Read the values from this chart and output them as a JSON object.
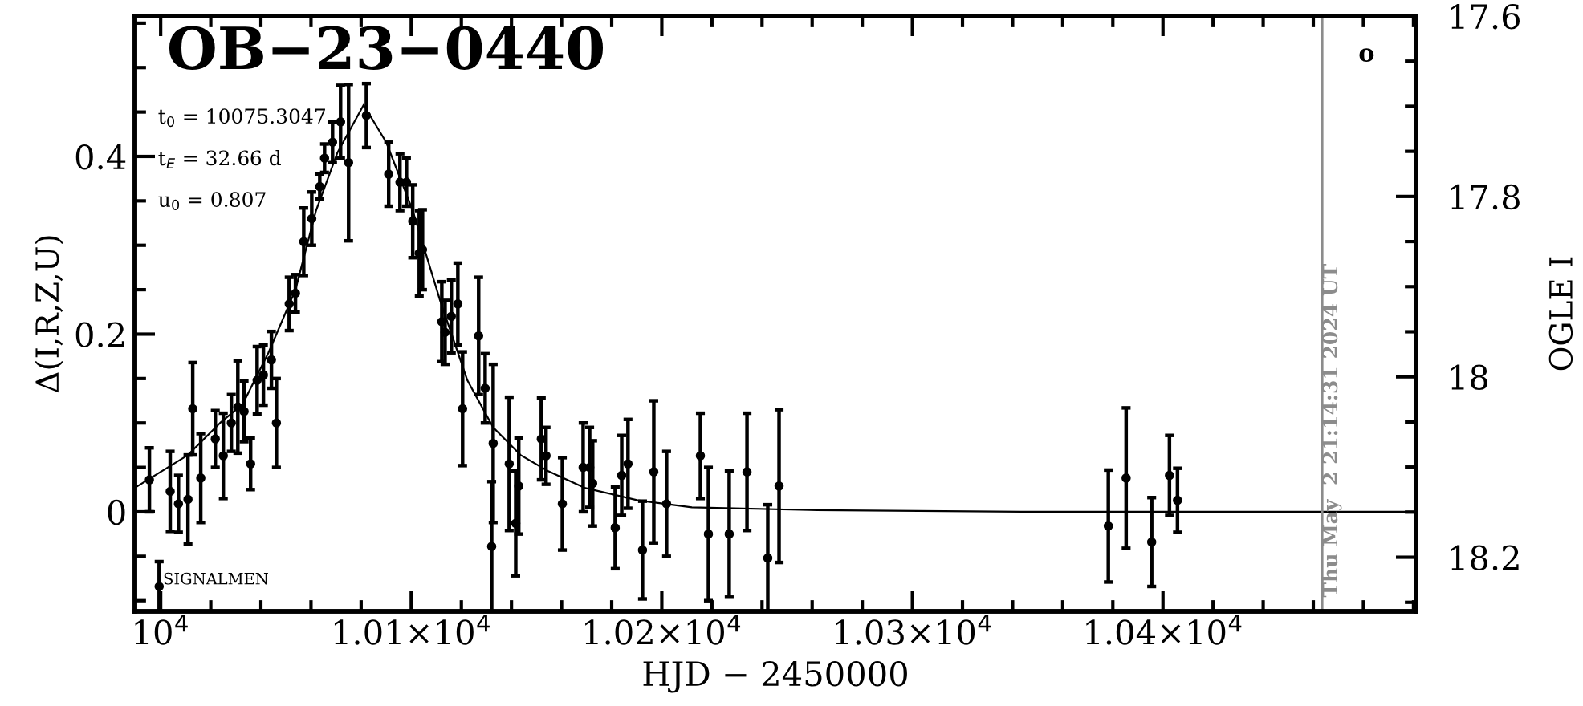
{
  "chart_data": {
    "type": "scatter",
    "title": "OB−23−0440",
    "xlabel": "HJD − 2450000",
    "ylabel": "Δ(I,R,Z,U)",
    "y2label": "OGLE I",
    "annotations": [
      "t$_{0}$ = 10075.3047",
      "t$_{E}$ = 32.66 d",
      "u$_{0}$ = 0.807",
      "SIGNALMEN",
      "o",
      "Thu May  2 21:14:31 2024 UT"
    ],
    "xlim": [
      9989.7,
      10501
    ],
    "ylim": [
      -0.112,
      0.558
    ],
    "y2lim": [
      18.26,
      17.6
    ],
    "xticks": [
      {
        "value": 10000,
        "label": "10$^{4}$"
      },
      {
        "value": 10020,
        "label": null
      },
      {
        "value": 10040,
        "label": null
      },
      {
        "value": 10060,
        "label": null
      },
      {
        "value": 10080,
        "label": null
      },
      {
        "value": 10100,
        "label": "1.01×10$^{4}$"
      },
      {
        "value": 10120,
        "label": null
      },
      {
        "value": 10140,
        "label": null
      },
      {
        "value": 10160,
        "label": null
      },
      {
        "value": 10180,
        "label": null
      },
      {
        "value": 10200,
        "label": "1.02×10$^{4}$"
      },
      {
        "value": 10220,
        "label": null
      },
      {
        "value": 10240,
        "label": null
      },
      {
        "value": 10260,
        "label": null
      },
      {
        "value": 10280,
        "label": null
      },
      {
        "value": 10300,
        "label": "1.03×10$^{4}$"
      },
      {
        "value": 10320,
        "label": null
      },
      {
        "value": 10340,
        "label": null
      },
      {
        "value": 10360,
        "label": null
      },
      {
        "value": 10380,
        "label": null
      },
      {
        "value": 10400,
        "label": "1.04×10$^{4}$"
      },
      {
        "value": 10420,
        "label": null
      },
      {
        "value": 10440,
        "label": null
      },
      {
        "value": 10460,
        "label": null
      },
      {
        "value": 10480,
        "label": null
      },
      {
        "value": 10500,
        "label": null
      }
    ],
    "yticks": [
      {
        "value": -0.1,
        "label": null
      },
      {
        "value": -0.05,
        "label": null
      },
      0,
      {
        "value": 0.05,
        "label": null
      },
      {
        "value": 0.1,
        "label": null
      },
      {
        "value": 0.15,
        "label": null
      },
      0.2,
      {
        "value": 0.25,
        "label": null
      },
      {
        "value": 0.3,
        "label": null
      },
      {
        "value": 0.35,
        "label": null
      },
      0.4,
      {
        "value": 0.45,
        "label": null
      },
      {
        "value": 0.5,
        "label": null
      },
      {
        "value": 0.55,
        "label": null
      }
    ],
    "y2ticks": [
      17.6,
      {
        "value": 17.65,
        "label": null
      },
      {
        "value": 17.7,
        "label": null
      },
      {
        "value": 17.75,
        "label": null
      },
      17.8,
      {
        "value": 17.85,
        "label": null
      },
      {
        "value": 17.9,
        "label": null
      },
      {
        "value": 17.95,
        "label": null
      },
      18,
      {
        "value": 18.05,
        "label": null
      },
      {
        "value": 18.1,
        "label": null
      },
      {
        "value": 18.15,
        "label": null
      },
      18.2,
      {
        "value": 18.25,
        "label": null
      }
    ],
    "ref_lines": [
      {
        "axis": "x",
        "value": 10463.5,
        "color": "#8c8c8c"
      }
    ],
    "grid": false,
    "marker": "circle",
    "series": [
      {
        "color": "#000000",
        "x": [
          9995.5,
          9999.4,
          10003.8,
          10007.1,
          10010.9,
          10012.8,
          10016.0,
          10021.8,
          10025.0,
          10028.2,
          10030.8,
          10033.3,
          10035.9,
          10038.5,
          10041.0,
          10044.2,
          10046.2,
          10051.3,
          10053.8,
          10057.1,
          10060.3,
          10063.5,
          10065.4,
          10068.6,
          10071.8,
          10075.0,
          10082.1,
          10091.0,
          10095.5,
          10098.1,
          10100.6,
          10103.2,
          10104.5,
          10112.2,
          10113.5,
          10116.0,
          10118.6,
          10120.5,
          10126.9,
          10129.5,
          10132.1,
          10132.7,
          10139.1,
          10141.7,
          10142.9,
          10151.9,
          10153.8,
          10160.3,
          10168.6,
          10171.2,
          10172.4,
          10181.4,
          10184.0,
          10186.5,
          10192.3,
          10196.8,
          10201.9,
          10215.4,
          10218.6,
          10226.9,
          10234.0,
          10242.3,
          10246.8,
          10378.2,
          10385.3,
          10395.5,
          10402.6,
          10405.8
        ],
        "values": [
          0.036,
          -0.084,
          0.023,
          0.009,
          0.014,
          0.116,
          0.038,
          0.082,
          0.063,
          0.1,
          0.118,
          0.113,
          0.054,
          0.148,
          0.154,
          0.171,
          0.1,
          0.234,
          0.246,
          0.304,
          0.33,
          0.366,
          0.398,
          0.416,
          0.439,
          0.393,
          0.446,
          0.38,
          0.371,
          0.371,
          0.327,
          0.291,
          0.295,
          0.214,
          0.202,
          0.22,
          0.234,
          0.116,
          0.198,
          0.139,
          -0.039,
          0.077,
          0.054,
          -0.013,
          0.029,
          0.082,
          0.063,
          0.009,
          0.05,
          0.05,
          0.032,
          -0.018,
          0.041,
          0.054,
          -0.043,
          0.045,
          0.009,
          0.063,
          -0.025,
          -0.025,
          0.045,
          -0.052,
          0.029,
          -0.016,
          0.038,
          -0.034,
          0.041,
          0.013
        ],
        "errors": [
          0.036,
          0.028,
          0.045,
          0.032,
          0.05,
          0.052,
          0.05,
          0.032,
          0.048,
          0.032,
          0.052,
          0.034,
          0.029,
          0.038,
          0.034,
          0.032,
          0.05,
          0.03,
          0.021,
          0.038,
          0.03,
          0.014,
          0.016,
          0.023,
          0.041,
          0.088,
          0.036,
          0.036,
          0.032,
          0.027,
          0.041,
          0.048,
          0.045,
          0.045,
          0.036,
          0.041,
          0.046,
          0.064,
          0.066,
          0.039,
          0.073,
          0.089,
          0.075,
          0.059,
          0.054,
          0.046,
          0.032,
          0.052,
          0.05,
          0.045,
          0.048,
          0.046,
          0.045,
          0.05,
          0.055,
          0.08,
          0.059,
          0.048,
          0.075,
          0.071,
          0.066,
          0.06,
          0.086,
          0.063,
          0.079,
          0.05,
          0.045,
          0.036
        ]
      },
      {
        "type": "line",
        "color": "#000000",
        "marker": "none",
        "x": [
          9989.7,
          10010.9,
          10023.7,
          10032.7,
          10043,
          10053.8,
          10062,
          10070.5,
          10081,
          10090,
          10100.6,
          10111.5,
          10122.4,
          10132.7,
          10143.6,
          10154.5,
          10169.2,
          10190.4,
          10212,
          10259,
          10350,
          10501
        ],
        "values": [
          0.027,
          0.064,
          0.1,
          0.121,
          0.179,
          0.25,
          0.339,
          0.404,
          0.458,
          0.416,
          0.339,
          0.238,
          0.148,
          0.095,
          0.064,
          0.046,
          0.027,
          0.013,
          0.005,
          0.002,
          0.0,
          0.0
        ]
      }
    ]
  }
}
